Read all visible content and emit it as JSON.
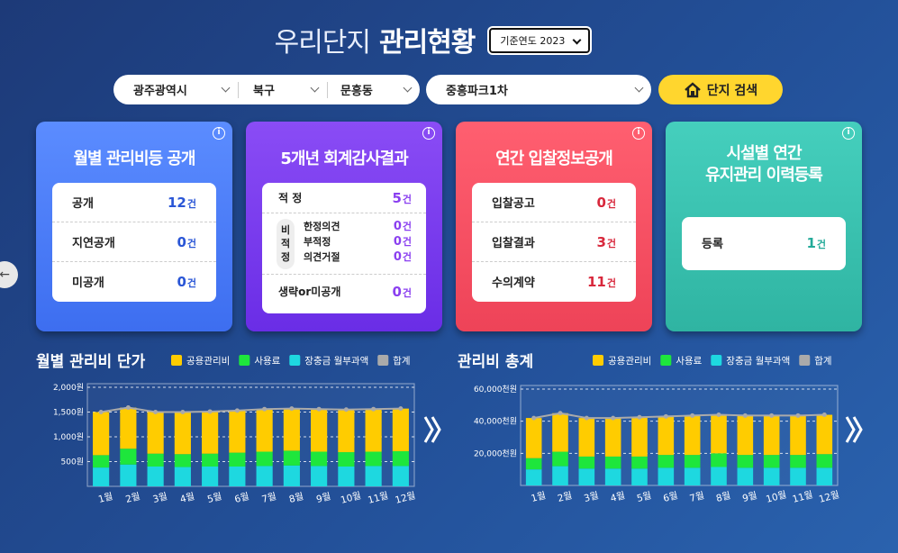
{
  "header": {
    "title_light": "우리단지",
    "title_bold": "관리현황",
    "year_select": "기준연도 2023"
  },
  "filters": {
    "city": "광주광역시",
    "district": "북구",
    "dong": "문흥동",
    "complex": "중흥파크1차",
    "search_button": "단지 검색"
  },
  "cards": [
    {
      "title": "월별 관리비등 공개",
      "rows": [
        {
          "label": "공개",
          "count": 12,
          "unit": "건"
        },
        {
          "label": "지연공개",
          "count": 0,
          "unit": "건"
        },
        {
          "label": "미공개",
          "count": 0,
          "unit": "건"
        }
      ]
    },
    {
      "title": "5개년 회계감사결과",
      "rows": [
        {
          "label": "적 정",
          "count": 5,
          "unit": "건"
        },
        {
          "label": "생략or미공개",
          "count": 0,
          "unit": "건"
        }
      ],
      "group": {
        "label": "비적정",
        "rows": [
          {
            "label": "한정의견",
            "count": 0,
            "unit": "건"
          },
          {
            "label": "부적정",
            "count": 0,
            "unit": "건"
          },
          {
            "label": "의견거절",
            "count": 0,
            "unit": "건"
          }
        ]
      }
    },
    {
      "title": "연간 입찰정보공개",
      "rows": [
        {
          "label": "입찰공고",
          "count": 0,
          "unit": "건"
        },
        {
          "label": "입찰결과",
          "count": 3,
          "unit": "건"
        },
        {
          "label": "수의계약",
          "count": 11,
          "unit": "건"
        }
      ]
    },
    {
      "title_lines": [
        "시설별 연간",
        "유지관리 이력등록"
      ],
      "rows": [
        {
          "label": "등록",
          "count": 1,
          "unit": "건"
        }
      ]
    }
  ],
  "chart_data": [
    {
      "type": "bar",
      "title": "월별 관리비 단가",
      "stacked": true,
      "categories": [
        "1월",
        "2월",
        "3월",
        "4월",
        "5월",
        "6월",
        "7월",
        "8월",
        "9월",
        "10월",
        "11월",
        "12월"
      ],
      "series": [
        {
          "name": "공용관리비",
          "color": "#ffcc00",
          "values": [
            870,
            830,
            840,
            850,
            850,
            850,
            860,
            850,
            860,
            860,
            860,
            860
          ]
        },
        {
          "name": "사용료",
          "color": "#1ee63c",
          "values": [
            250,
            320,
            260,
            260,
            260,
            280,
            290,
            300,
            290,
            290,
            290,
            300
          ]
        },
        {
          "name": "장충금 월부과액",
          "color": "#1ed8e0",
          "values": [
            380,
            440,
            400,
            390,
            400,
            400,
            410,
            420,
            410,
            400,
            410,
            410
          ]
        },
        {
          "name": "합계",
          "color": "#aaaaaa",
          "type": "line",
          "values": [
            1500,
            1590,
            1500,
            1500,
            1510,
            1530,
            1560,
            1570,
            1560,
            1550,
            1560,
            1570
          ]
        }
      ],
      "ylim": [
        0,
        2000
      ],
      "yticks": [
        {
          "value": 500,
          "label": "500원"
        },
        {
          "value": 1000,
          "label": "1,000원"
        },
        {
          "value": 1500,
          "label": "1,500원"
        },
        {
          "value": 2000,
          "label": "2,000원"
        }
      ],
      "grid": true
    },
    {
      "type": "bar",
      "title": "관리비 총계",
      "stacked": true,
      "categories": [
        "1월",
        "2월",
        "3월",
        "4월",
        "5월",
        "6월",
        "7월",
        "8월",
        "9월",
        "10월",
        "11월",
        "12월"
      ],
      "series": [
        {
          "name": "공용관리비",
          "color": "#ffcc00",
          "values": [
            25000,
            24000,
            24000,
            24000,
            24500,
            24000,
            24500,
            24000,
            24500,
            24500,
            24500,
            24500
          ]
        },
        {
          "name": "사용료",
          "color": "#1ee63c",
          "values": [
            7000,
            9000,
            7500,
            7500,
            7500,
            8000,
            8000,
            8500,
            8000,
            8000,
            8000,
            8500
          ]
        },
        {
          "name": "장충금 월부과액",
          "color": "#1ed8e0",
          "values": [
            10000,
            12000,
            10500,
            10500,
            10500,
            11000,
            11000,
            11500,
            11000,
            11000,
            11000,
            11000
          ]
        },
        {
          "name": "합계",
          "color": "#aaaaaa",
          "type": "line",
          "values": [
            42000,
            45000,
            42000,
            42000,
            42500,
            43000,
            43500,
            44000,
            43500,
            43500,
            43500,
            44000
          ]
        }
      ],
      "ylim": [
        0,
        60000
      ],
      "yticks": [
        {
          "value": 20000,
          "label": "20,000천원"
        },
        {
          "value": 40000,
          "label": "40,000천원"
        },
        {
          "value": 60000,
          "label": "60,000천원"
        }
      ],
      "grid": true
    }
  ]
}
